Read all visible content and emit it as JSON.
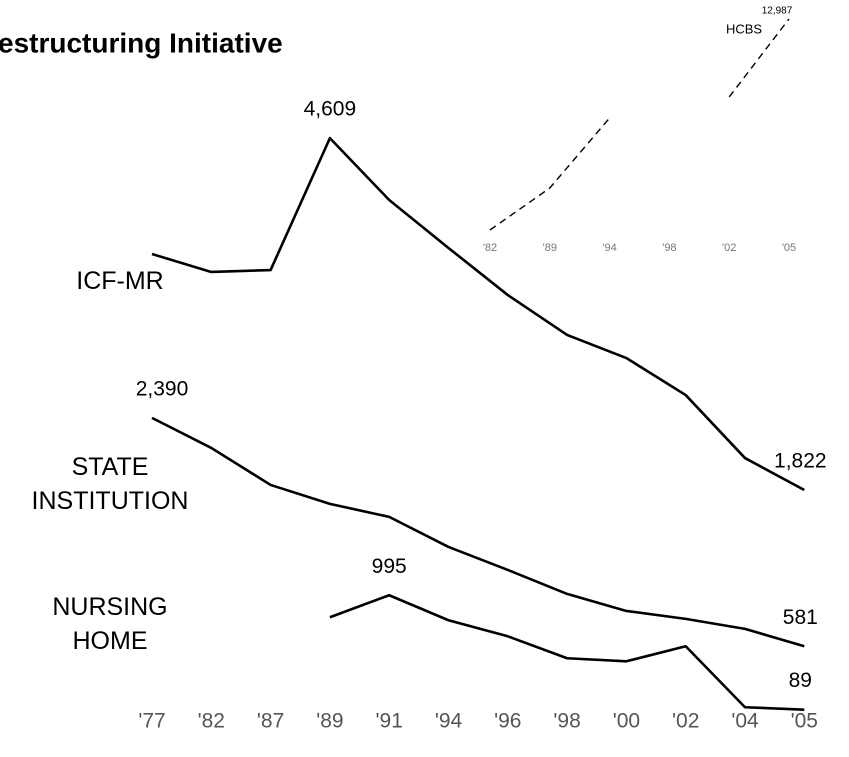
{
  "chart_data": [
    {
      "type": "line",
      "title": "estructuring Initiative",
      "categories": [
        "'77",
        "'82",
        "'87",
        "'89",
        "'91",
        "'94",
        "'96",
        "'98",
        "'00",
        "'02",
        "'04",
        "'05"
      ],
      "series": [
        {
          "name": "ICF-MR",
          "color": "#000000",
          "ylim": [
            1500,
            4800
          ],
          "values": [
            3691,
            3549,
            3564,
            4609,
            4119,
            3739,
            3366,
            3050,
            2867,
            2574,
            2075,
            1822
          ],
          "value_labels": [
            null,
            null,
            null,
            "4,609",
            null,
            null,
            null,
            null,
            null,
            null,
            null,
            "1,822"
          ]
        },
        {
          "name": "STATE INSTITUTION",
          "color": "#000000",
          "ylim": [
            500,
            2500
          ],
          "values": [
            2390,
            2152,
            1859,
            1709,
            1606,
            1368,
            1186,
            996,
            861,
            798,
            719,
            581
          ],
          "value_labels": [
            "2,390",
            null,
            null,
            null,
            null,
            null,
            null,
            null,
            null,
            null,
            null,
            "581"
          ]
        },
        {
          "name": "NURSING HOME",
          "color": "#000000",
          "ylim": [
            0,
            1100
          ],
          "values": [
            null,
            null,
            null,
            821,
            995,
            797,
            670,
            496,
            472,
            591,
            108,
            89
          ],
          "value_labels": [
            null,
            null,
            null,
            null,
            "995",
            null,
            null,
            null,
            null,
            null,
            null,
            "89"
          ]
        }
      ]
    },
    {
      "type": "line",
      "categories": [
        "'82",
        "'89",
        "'94",
        "'98",
        "'02",
        "'05"
      ],
      "ylim": [
        0,
        13500
      ],
      "series": [
        {
          "name": "HCBS",
          "color": "#000000",
          "dashed": true,
          "values": [
            862,
            3274,
            7296,
            null,
            8503,
            12987
          ],
          "value_labels": [
            null,
            null,
            null,
            null,
            null,
            "12,987"
          ]
        }
      ]
    }
  ]
}
